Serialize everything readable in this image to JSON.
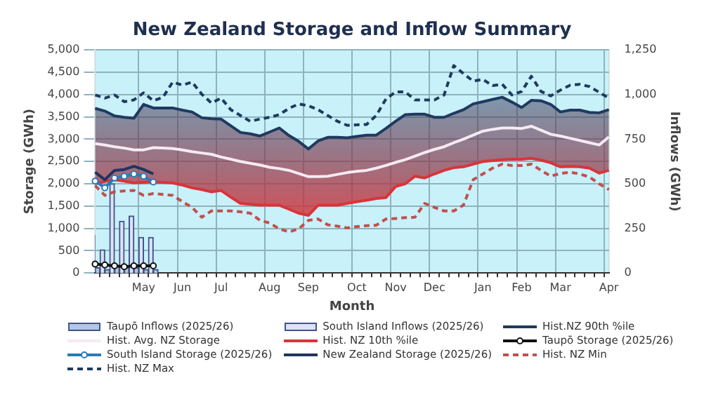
{
  "chart_data": {
    "type": "line",
    "title": "New Zealand Storage and Inflow Summary",
    "xlabel": "Month",
    "ylabel": "Storage (GWh)",
    "y2label": "Inflows (GWh)",
    "categories": [
      null,
      null,
      null,
      null,
      null,
      "May",
      null,
      null,
      null,
      "Jun",
      null,
      null,
      null,
      "Jul",
      null,
      null,
      null,
      null,
      "Aug",
      null,
      null,
      null,
      "Sep",
      null,
      null,
      null,
      null,
      "Oct",
      null,
      null,
      null,
      "Nov",
      null,
      null,
      null,
      "Dec",
      null,
      null,
      null,
      null,
      "Jan",
      null,
      null,
      null,
      "Feb",
      null,
      null,
      null,
      "Mar",
      null,
      null,
      null,
      null,
      "Apr"
    ],
    "ylim": [
      0,
      5000
    ],
    "yticks": [
      0,
      500,
      {
        "value": 1000,
        "label": "1,000"
      },
      {
        "value": 1500,
        "label": "1,500"
      },
      {
        "value": 2000,
        "label": "2,000"
      },
      {
        "value": 2500,
        "label": "2,500"
      },
      {
        "value": 3000,
        "label": "3,000"
      },
      {
        "value": 3500,
        "label": "3,500"
      },
      {
        "value": 4000,
        "label": "4,000"
      },
      {
        "value": 4500,
        "label": "4,500"
      },
      {
        "value": 5000,
        "label": "5,000"
      }
    ],
    "y2lim": [
      0,
      1250
    ],
    "y2ticks": [
      0,
      250,
      500,
      750,
      {
        "value": 1000,
        "label": "1,000"
      },
      {
        "value": 1250,
        "label": "1,250"
      }
    ],
    "grid": true,
    "legend": "bottom",
    "marker": "none",
    "line_style": "solid",
    "series": [
      {
        "name": "Taupō Inflows (2025/26)",
        "type": "bar",
        "axis": "y2",
        "color": "#b4c6e2",
        "values": [
          30,
          20,
          40,
          30,
          30,
          20,
          20,
          null,
          null,
          null,
          null,
          null,
          null,
          null,
          null,
          null,
          null,
          null,
          null,
          null,
          null,
          null,
          null,
          null,
          null,
          null,
          null,
          null,
          null,
          null,
          null,
          null,
          null,
          null,
          null,
          null,
          null,
          null,
          null,
          null,
          null,
          null,
          null,
          null,
          null,
          null,
          null,
          null,
          null,
          null,
          null,
          null,
          null,
          null
        ]
      },
      {
        "name": "South Island Inflows (2025/26)",
        "type": "bar",
        "axis": "y2",
        "color": "#dfe2f8",
        "values": [
          210,
          130,
          500,
          290,
          320,
          200,
          200,
          null,
          null,
          null,
          null,
          null,
          null,
          null,
          null,
          null,
          null,
          null,
          null,
          null,
          null,
          null,
          null,
          null,
          null,
          null,
          null,
          null,
          null,
          null,
          null,
          null,
          null,
          null,
          null,
          null,
          null,
          null,
          null,
          null,
          null,
          null,
          null,
          null,
          null,
          null,
          null,
          null,
          null,
          null,
          null,
          null,
          null,
          null
        ]
      },
      {
        "name": "Hist.NZ 90th %ile",
        "type": "area",
        "color": "#1f3a5f",
        "values": [
          3690,
          3630,
          3520,
          3490,
          3470,
          3780,
          3700,
          3700,
          3700,
          3650,
          3610,
          3480,
          3460,
          3450,
          3300,
          3150,
          3120,
          3070,
          3160,
          3250,
          3080,
          2950,
          2780,
          2960,
          3040,
          3040,
          3030,
          3060,
          3090,
          3090,
          3240,
          3400,
          3550,
          3560,
          3560,
          3490,
          3490,
          3580,
          3660,
          3790,
          3840,
          3890,
          3940,
          3830,
          3710,
          3870,
          3860,
          3780,
          3610,
          3650,
          3650,
          3600,
          3590,
          3660
        ]
      },
      {
        "name": "Hist. Avg. NZ Storage",
        "color": "#f6eaf2",
        "values": [
          2900,
          2870,
          2830,
          2800,
          2760,
          2760,
          2810,
          2800,
          2790,
          2760,
          2720,
          2690,
          2660,
          2600,
          2550,
          2500,
          2460,
          2420,
          2370,
          2340,
          2300,
          2230,
          2160,
          2160,
          2170,
          2210,
          2250,
          2280,
          2300,
          2350,
          2410,
          2480,
          2540,
          2620,
          2700,
          2770,
          2830,
          2920,
          3000,
          3090,
          3180,
          3220,
          3250,
          3250,
          3240,
          3290,
          3200,
          3110,
          3070,
          3020,
          2970,
          2920,
          2870,
          3050
        ]
      },
      {
        "name": "Hist. NZ 10th %ile",
        "color": "#d9343a",
        "values": [
          2000,
          2050,
          2090,
          2060,
          2020,
          2030,
          2040,
          2030,
          2020,
          1970,
          1910,
          1870,
          1820,
          1850,
          1700,
          1560,
          1540,
          1520,
          1520,
          1520,
          1430,
          1340,
          1290,
          1520,
          1520,
          1520,
          1560,
          1600,
          1630,
          1670,
          1690,
          1940,
          2000,
          2170,
          2130,
          2220,
          2300,
          2360,
          2380,
          2440,
          2500,
          2520,
          2540,
          2550,
          2550,
          2570,
          2530,
          2470,
          2380,
          2390,
          2380,
          2350,
          2240,
          2300
        ]
      },
      {
        "name": "Taupō Storage (2025/26)",
        "color": "#111111",
        "marker": "circle",
        "values": [
          200,
          180,
          160,
          140,
          160,
          160,
          160,
          null,
          null,
          null,
          null,
          null,
          null,
          null,
          null,
          null,
          null,
          null,
          null,
          null,
          null,
          null,
          null,
          null,
          null,
          null,
          null,
          null,
          null,
          null,
          null,
          null,
          null,
          null,
          null,
          null,
          null,
          null,
          null,
          null,
          null,
          null,
          null,
          null,
          null,
          null,
          null,
          null,
          null,
          null,
          null,
          null,
          null,
          null
        ]
      },
      {
        "name": "South Island Storage (2025/26)",
        "color": "#2a7ab8",
        "marker": "circle",
        "values": [
          2060,
          1910,
          2130,
          2170,
          2220,
          2170,
          2040,
          null,
          null,
          null,
          null,
          null,
          null,
          null,
          null,
          null,
          null,
          null,
          null,
          null,
          null,
          null,
          null,
          null,
          null,
          null,
          null,
          null,
          null,
          null,
          null,
          null,
          null,
          null,
          null,
          null,
          null,
          null,
          null,
          null,
          null,
          null,
          null,
          null,
          null,
          null,
          null,
          null,
          null,
          null,
          null,
          null,
          null,
          null
        ]
      },
      {
        "name": "New Zealand Storage (2025/26)",
        "color": "#1f3460",
        "values": [
          2260,
          2090,
          2300,
          2320,
          2390,
          2320,
          2220,
          null,
          null,
          null,
          null,
          null,
          null,
          null,
          null,
          null,
          null,
          null,
          null,
          null,
          null,
          null,
          null,
          null,
          null,
          null,
          null,
          null,
          null,
          null,
          null,
          null,
          null,
          null,
          null,
          null,
          null,
          null,
          null,
          null,
          null,
          null,
          null,
          null,
          null,
          null,
          null,
          null,
          null,
          null,
          null,
          null,
          null,
          null
        ]
      },
      {
        "name": "Hist. NZ Min",
        "line_style": "dashed",
        "color": "#c0504d",
        "values": [
          1960,
          1740,
          1820,
          1840,
          1850,
          1740,
          1780,
          1760,
          1740,
          1600,
          1470,
          1250,
          1390,
          1390,
          1390,
          1370,
          1340,
          1180,
          1120,
          990,
          920,
          990,
          1180,
          1210,
          1080,
          1050,
          1010,
          1040,
          1060,
          1070,
          1210,
          1220,
          1240,
          1250,
          1560,
          1470,
          1390,
          1390,
          1520,
          2090,
          2220,
          2350,
          2440,
          2410,
          2410,
          2440,
          2300,
          2170,
          2230,
          2260,
          2220,
          2150,
          2000,
          1870
        ]
      },
      {
        "name": "Hist. NZ Max",
        "line_style": "dashed",
        "color": "#1f3a5f",
        "values": [
          3990,
          3920,
          3990,
          3840,
          3880,
          4040,
          3860,
          3940,
          4280,
          4210,
          4280,
          4010,
          3810,
          3920,
          3660,
          3530,
          3400,
          3450,
          3490,
          3550,
          3690,
          3790,
          3750,
          3660,
          3530,
          3400,
          3310,
          3320,
          3330,
          3530,
          3900,
          4060,
          4060,
          3880,
          3880,
          3880,
          3990,
          4650,
          4470,
          4300,
          4340,
          4200,
          4230,
          3990,
          4070,
          4410,
          4070,
          3970,
          4100,
          4210,
          4230,
          4180,
          4050,
          3920
        ]
      }
    ]
  }
}
